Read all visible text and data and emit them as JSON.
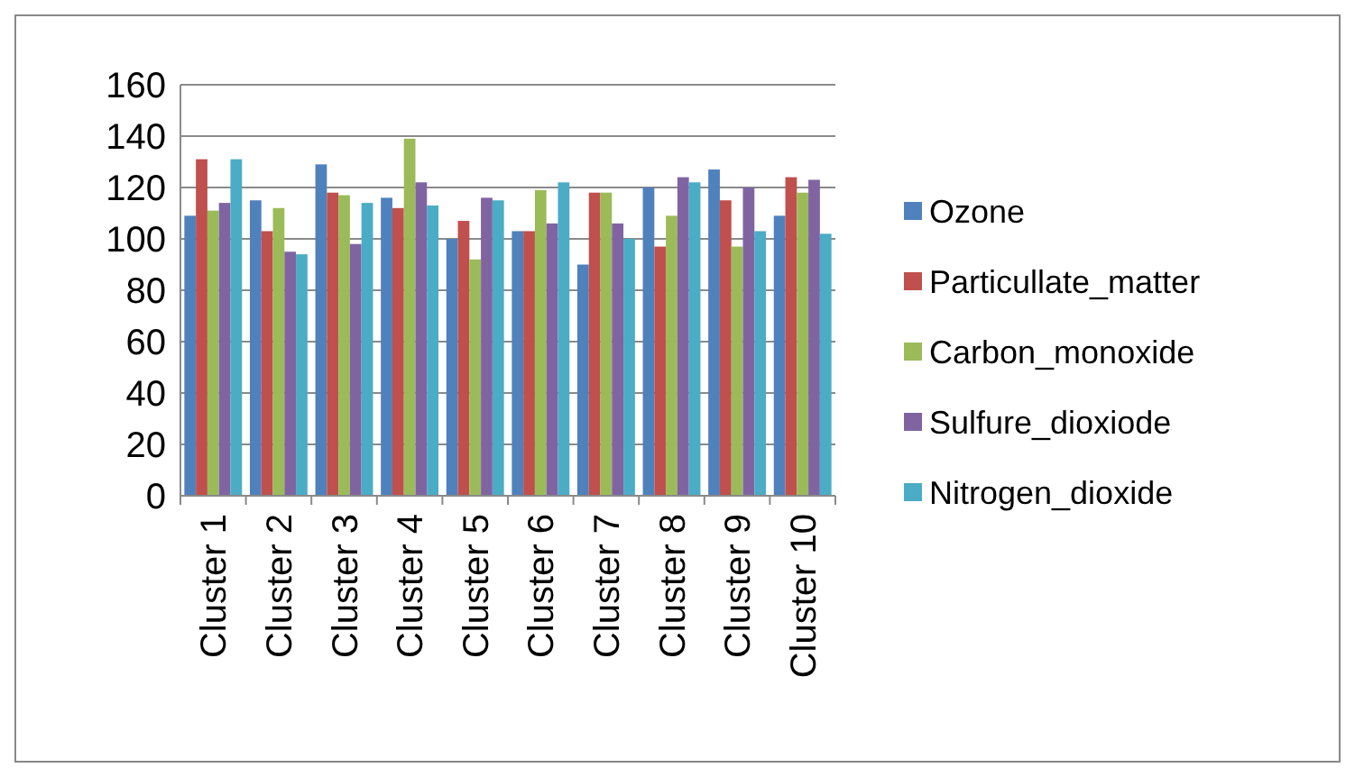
{
  "chart_data": {
    "type": "bar",
    "categories": [
      "Cluster 1",
      "Cluster 2",
      "Cluster 3",
      "Cluster 4",
      "Cluster 5",
      "Cluster 6",
      "Cluster 7",
      "Cluster 8",
      "Cluster 9",
      "Cluster 10"
    ],
    "series": [
      {
        "name": "Ozone",
        "color": "#4f81bd",
        "values": [
          109,
          115,
          129,
          116,
          100,
          103,
          90,
          120,
          127,
          109
        ]
      },
      {
        "name": "Particullate_matter",
        "color": "#c0504d",
        "values": [
          131,
          103,
          118,
          112,
          107,
          103,
          118,
          97,
          115,
          124
        ]
      },
      {
        "name": "Carbon_monoxide",
        "color": "#9bbb59",
        "values": [
          111,
          112,
          117,
          139,
          92,
          119,
          118,
          109,
          97,
          118
        ]
      },
      {
        "name": "Sulfure_dioxiode",
        "color": "#8064a2",
        "values": [
          114,
          95,
          98,
          122,
          116,
          106,
          106,
          124,
          120,
          123
        ]
      },
      {
        "name": "Nitrogen_dioxide",
        "color": "#4bacc6",
        "values": [
          131,
          94,
          114,
          113,
          115,
          122,
          100,
          122,
          103,
          102
        ]
      }
    ],
    "ylim": [
      0,
      160
    ],
    "yticks": [
      0,
      20,
      40,
      60,
      80,
      100,
      120,
      140,
      160
    ],
    "grid": "y",
    "legend": "right"
  }
}
